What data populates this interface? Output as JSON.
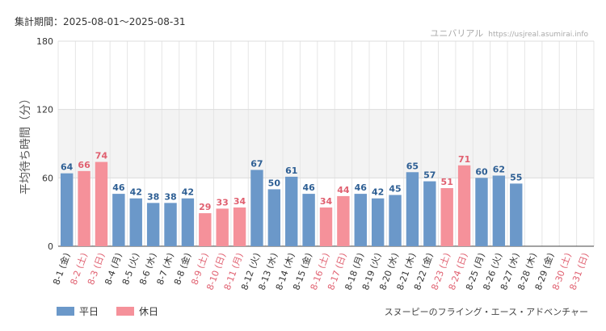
{
  "header": {
    "period_label": "集計期間：2025-08-01〜2025-08-31",
    "site_name": "ユニバリアル",
    "site_url": "https://usjreal.asumirai.info"
  },
  "footer": {
    "attraction": "スヌーピーのフライング・エース・アドベンチャー"
  },
  "colors": {
    "weekday": "#6b98c9",
    "holiday": "#f5919a",
    "weekday_label": "#2e5f94",
    "holiday_label": "#e06070",
    "band": "#f3f3f3"
  },
  "chart_data": {
    "type": "bar",
    "ylabel": "平均待ち時間（分）",
    "ylim": [
      0,
      180
    ],
    "yticks": [
      0,
      60,
      120,
      180
    ],
    "shaded_band": [
      60,
      120
    ],
    "legend": [
      {
        "name": "平日",
        "key": "weekday"
      },
      {
        "name": "休日",
        "key": "holiday"
      }
    ],
    "categories": [
      "8-1 (金)",
      "8-2 (土)",
      "8-3 (日)",
      "8-4 (月)",
      "8-5 (火)",
      "8-6 (水)",
      "8-7 (木)",
      "8-8 (金)",
      "8-9 (土)",
      "8-10 (日)",
      "8-11 (月)",
      "8-12 (火)",
      "8-13 (水)",
      "8-14 (木)",
      "8-15 (金)",
      "8-16 (土)",
      "8-17 (日)",
      "8-18 (月)",
      "8-19 (火)",
      "8-20 (水)",
      "8-21 (木)",
      "8-22 (金)",
      "8-23 (土)",
      "8-24 (日)",
      "8-25 (月)",
      "8-26 (火)",
      "8-27 (水)",
      "8-28 (木)",
      "8-29 (金)",
      "8-30 (土)",
      "8-31 (日)"
    ],
    "day_type": [
      "weekday",
      "holiday",
      "holiday",
      "weekday",
      "weekday",
      "weekday",
      "weekday",
      "weekday",
      "holiday",
      "holiday",
      "holiday",
      "weekday",
      "weekday",
      "weekday",
      "weekday",
      "holiday",
      "holiday",
      "weekday",
      "weekday",
      "weekday",
      "weekday",
      "weekday",
      "holiday",
      "holiday",
      "weekday",
      "weekday",
      "weekday",
      "weekday",
      "weekday",
      "holiday",
      "holiday"
    ],
    "values": [
      64,
      66,
      74,
      46,
      42,
      38,
      38,
      42,
      29,
      33,
      34,
      67,
      50,
      61,
      46,
      34,
      44,
      46,
      42,
      45,
      65,
      57,
      51,
      71,
      60,
      62,
      55,
      null,
      null,
      null,
      null
    ]
  }
}
